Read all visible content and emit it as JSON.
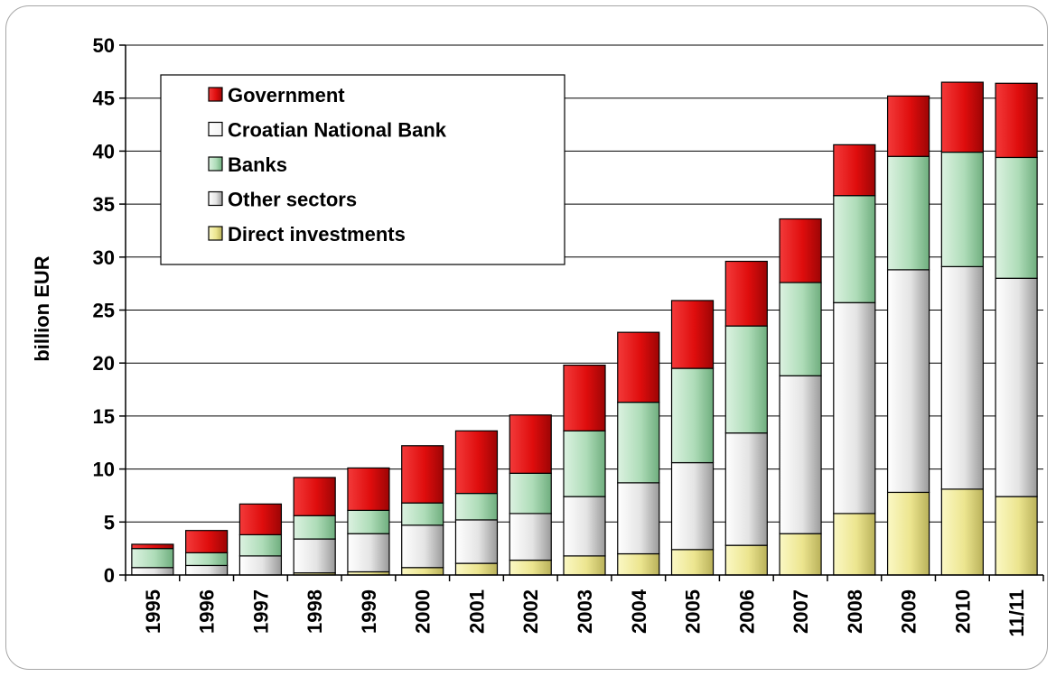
{
  "chart_data": {
    "type": "bar",
    "stacked": true,
    "ylabel": "billion EUR",
    "xlabel": "",
    "ylim": [
      0,
      50
    ],
    "yticks": [
      0,
      5,
      10,
      15,
      20,
      25,
      30,
      35,
      40,
      45,
      50
    ],
    "grid": true,
    "legend_position": "top-left",
    "categories": [
      "1995",
      "1996",
      "1997",
      "1998",
      "1999",
      "2000",
      "2001",
      "2002",
      "2003",
      "2004",
      "2005",
      "2006",
      "2007",
      "2008",
      "2009",
      "2010",
      "11/11"
    ],
    "series": [
      {
        "name": "Direct investments",
        "color": "#e8e28a",
        "values": [
          0,
          0,
          0,
          0.2,
          0.3,
          0.7,
          1.1,
          1.4,
          1.8,
          2.0,
          2.4,
          2.8,
          3.9,
          5.8,
          7.8,
          8.1,
          7.4
        ]
      },
      {
        "name": "Other sectors",
        "color": "#d9d9d9",
        "values": [
          0.7,
          0.9,
          1.8,
          3.2,
          3.6,
          4.0,
          4.1,
          4.4,
          5.6,
          6.7,
          8.2,
          10.6,
          14.9,
          19.9,
          21.0,
          21.0,
          20.6
        ]
      },
      {
        "name": "Croatian National Bank",
        "color": "#ffffff",
        "values": [
          0,
          0,
          0,
          0,
          0,
          0,
          0,
          0,
          0,
          0,
          0,
          0,
          0,
          0,
          0,
          0,
          0
        ]
      },
      {
        "name": "Banks",
        "color": "#a9dcb5",
        "values": [
          1.8,
          1.2,
          2.0,
          2.2,
          2.2,
          2.1,
          2.5,
          3.8,
          6.2,
          7.6,
          8.9,
          10.1,
          8.8,
          10.1,
          10.7,
          10.8,
          11.4
        ]
      },
      {
        "name": "Government",
        "color": "#dd0f0f",
        "values": [
          0.4,
          2.1,
          2.9,
          3.6,
          4.0,
          5.4,
          5.9,
          5.5,
          6.2,
          6.6,
          6.4,
          6.1,
          6.0,
          4.8,
          5.7,
          6.6,
          7.0
        ]
      }
    ],
    "legend_order": [
      "Government",
      "Croatian National Bank",
      "Banks",
      "Other sectors",
      "Direct investments"
    ]
  }
}
